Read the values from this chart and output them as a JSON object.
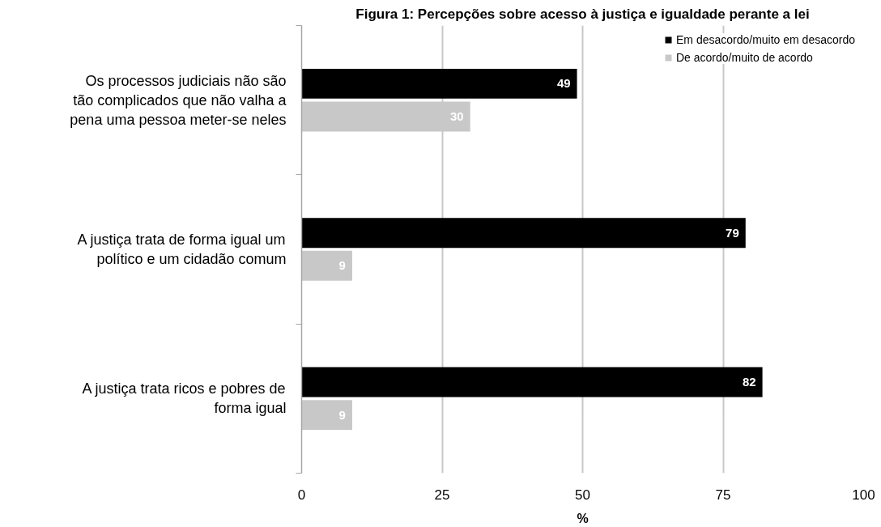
{
  "chart_data": {
    "type": "bar",
    "orientation": "horizontal",
    "title": "Figura 1: Percepções sobre acesso à justiça e igualdade perante a lei",
    "xlabel": "%",
    "categories": [
      "Os processos judiciais não são tão complicados que não valha a pena uma pessoa meter-se neles",
      "A justiça trata de forma igual um político e um cidadão comum",
      "A justiça trata ricos e pobres de forma igual"
    ],
    "series": [
      {
        "name": "Em desacordo/muito em desacordo",
        "color": "#000000",
        "values": [
          49,
          79,
          82
        ]
      },
      {
        "name": "De acordo/muito de acordo",
        "color": "#c8c8c8",
        "values": [
          30,
          9,
          9
        ]
      }
    ],
    "xlim": [
      0,
      100
    ],
    "xticks": [
      0,
      25,
      50,
      75,
      100
    ],
    "grid": "x",
    "legend": "top right",
    "data_labels": true
  }
}
